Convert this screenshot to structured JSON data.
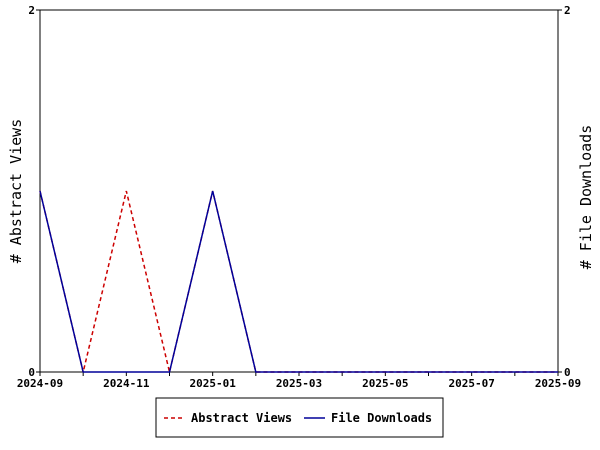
{
  "chart_data": {
    "type": "line",
    "x": [
      "2024-09",
      "2024-10",
      "2024-11",
      "2024-12",
      "2025-01",
      "2025-02",
      "2025-03",
      "2025-04",
      "2025-05",
      "2025-06",
      "2025-07",
      "2025-08",
      "2025-09"
    ],
    "x_tick_labels": [
      "2024-09",
      "2024-11",
      "2025-01",
      "2025-03",
      "2025-05",
      "2025-07",
      "2025-09"
    ],
    "series": [
      {
        "name": "Abstract Views",
        "axis": "left",
        "color": "#cc0000",
        "dash": "dashed",
        "values": [
          1,
          0,
          1,
          0,
          1,
          0,
          0,
          0,
          0,
          0,
          0,
          0,
          0
        ]
      },
      {
        "name": "File Downloads",
        "axis": "right",
        "color": "#000099",
        "dash": "solid",
        "values": [
          1,
          0,
          0,
          0,
          1,
          0,
          0,
          0,
          0,
          0,
          0,
          0,
          0
        ]
      }
    ],
    "ylabel_left": "# Abstract Views",
    "ylabel_right": "# File Downloads",
    "ylim_left": [
      0,
      2
    ],
    "ylim_right": [
      0,
      2
    ],
    "y_tick_labels_left": [
      "0",
      "2"
    ],
    "y_tick_labels_right": [
      "0",
      "2"
    ],
    "grid": false,
    "legend_position": "bottom"
  }
}
